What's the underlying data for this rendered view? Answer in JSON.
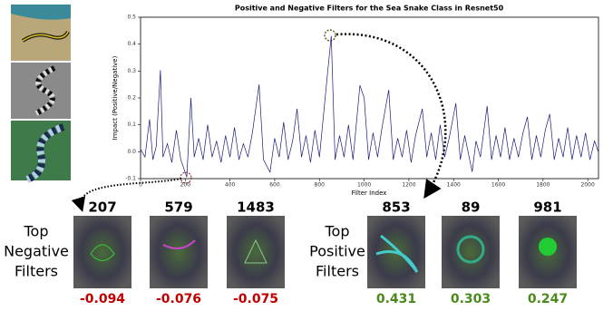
{
  "chart_data": {
    "type": "line",
    "title": "Positive and Negative Filters for the Sea Snake Class in Resnet50",
    "x_label": "Filter Index",
    "y_label": "Impact (Positive/Negative)",
    "color": "#1a1a7a",
    "xlim": [
      0,
      2048
    ],
    "xticks": [
      0,
      200,
      400,
      600,
      800,
      1000,
      1200,
      1400,
      1600,
      1800,
      2000
    ],
    "ylim": [
      -0.1,
      0.5
    ],
    "yticks": [
      -0.1,
      {
        "value": 0,
        "label": "0.0"
      },
      0.1,
      0.2,
      0.3,
      0.4,
      0.5
    ],
    "x": [
      0,
      20,
      40,
      55,
      70,
      89,
      100,
      120,
      140,
      160,
      180,
      207,
      225,
      240,
      260,
      280,
      300,
      320,
      340,
      360,
      380,
      400,
      420,
      440,
      460,
      480,
      500,
      530,
      550,
      579,
      600,
      620,
      640,
      660,
      680,
      700,
      720,
      740,
      760,
      780,
      800,
      830,
      853,
      870,
      890,
      910,
      930,
      950,
      981,
      1000,
      1020,
      1040,
      1060,
      1080,
      1110,
      1130,
      1150,
      1170,
      1190,
      1210,
      1230,
      1260,
      1280,
      1300,
      1320,
      1340,
      1360,
      1380,
      1410,
      1430,
      1450,
      1483,
      1500,
      1520,
      1550,
      1570,
      1590,
      1610,
      1630,
      1650,
      1670,
      1690,
      1710,
      1730,
      1750,
      1770,
      1790,
      1810,
      1830,
      1850,
      1870,
      1890,
      1910,
      1930,
      1950,
      1970,
      1990,
      2010,
      2030,
      2047
    ],
    "values": [
      0.01,
      -0.02,
      0.12,
      -0.03,
      0.02,
      0.303,
      -0.02,
      0.03,
      -0.04,
      0.08,
      -0.03,
      -0.094,
      0.2,
      -0.02,
      0.05,
      -0.03,
      0.1,
      -0.02,
      0.04,
      -0.04,
      0.06,
      -0.02,
      0.09,
      -0.03,
      0.03,
      -0.02,
      0.07,
      0.25,
      -0.03,
      -0.076,
      0.05,
      -0.02,
      0.11,
      -0.03,
      0.04,
      0.16,
      -0.02,
      0.06,
      -0.04,
      0.08,
      -0.02,
      0.24,
      0.431,
      -0.03,
      0.06,
      -0.02,
      0.1,
      -0.03,
      0.247,
      0.2,
      -0.03,
      0.07,
      -0.02,
      0.09,
      0.23,
      -0.03,
      0.05,
      -0.02,
      0.08,
      -0.04,
      0.06,
      0.16,
      -0.02,
      0.07,
      -0.03,
      0.1,
      -0.02,
      0.05,
      0.18,
      -0.03,
      0.06,
      -0.075,
      0.04,
      -0.02,
      0.17,
      -0.03,
      0.06,
      -0.02,
      0.09,
      -0.03,
      0.05,
      -0.02,
      0.07,
      0.13,
      -0.03,
      0.06,
      -0.02,
      0.08,
      0.14,
      -0.03,
      0.05,
      -0.02,
      0.09,
      -0.03,
      0.06,
      -0.02,
      0.07,
      -0.03,
      0.04,
      0
    ]
  },
  "negative": {
    "label": [
      "Top",
      "Negative",
      "Filters"
    ],
    "filters": [
      207,
      579,
      1483
    ],
    "impacts": [
      -0.094,
      -0.076,
      -0.075
    ]
  },
  "positive": {
    "label": [
      "Top",
      "Positive",
      "Filters"
    ],
    "filters": [
      853,
      89,
      981
    ],
    "impacts": [
      0.431,
      0.303,
      0.247
    ]
  }
}
